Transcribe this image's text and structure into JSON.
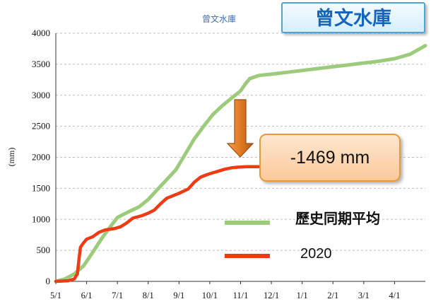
{
  "colors": {
    "historical": "#9ccc7b",
    "year2020": "#ee3b14",
    "arrow": "#e07a25",
    "badge_text": "#1565c0"
  },
  "badge": {
    "title": "曾文水庫"
  },
  "callout": {
    "text": "-1469 mm"
  },
  "chart_data": {
    "type": "line",
    "title": "曾文水庫",
    "ylabel": "(mm)",
    "xlabel": "",
    "ylim": [
      0,
      4000
    ],
    "y_ticks": [
      0,
      500,
      1000,
      1500,
      2000,
      2500,
      3000,
      3500,
      4000
    ],
    "x_ticks": [
      "5/1",
      "6/1",
      "7/1",
      "8/1",
      "9/1",
      "10/1",
      "11/1",
      "12/1",
      "1/1",
      "2/1",
      "3/1",
      "4/1"
    ],
    "x_unit": "months since 5/1",
    "grid": true,
    "legend_position": "bottom-right",
    "series": [
      {
        "name": "歷史同期平均",
        "color": "#9ccc7b",
        "points": [
          [
            0,
            0
          ],
          [
            0.3,
            40
          ],
          [
            0.6,
            120
          ],
          [
            0.9,
            250
          ],
          [
            1.2,
            470
          ],
          [
            1.5,
            700
          ],
          [
            1.8,
            900
          ],
          [
            2.0,
            1030
          ],
          [
            2.4,
            1130
          ],
          [
            2.7,
            1200
          ],
          [
            3.0,
            1320
          ],
          [
            3.3,
            1480
          ],
          [
            3.6,
            1640
          ],
          [
            3.9,
            1800
          ],
          [
            4.2,
            2050
          ],
          [
            4.5,
            2300
          ],
          [
            4.8,
            2500
          ],
          [
            5.1,
            2690
          ],
          [
            5.4,
            2830
          ],
          [
            5.7,
            2950
          ],
          [
            6.0,
            3070
          ],
          [
            6.15,
            3180
          ],
          [
            6.3,
            3270
          ],
          [
            6.6,
            3320
          ],
          [
            7.0,
            3340
          ],
          [
            7.5,
            3370
          ],
          [
            8.0,
            3400
          ],
          [
            8.5,
            3430
          ],
          [
            9.0,
            3460
          ],
          [
            9.5,
            3490
          ],
          [
            10.0,
            3520
          ],
          [
            10.5,
            3550
          ],
          [
            11.0,
            3590
          ],
          [
            11.5,
            3660
          ],
          [
            12.0,
            3800
          ]
        ]
      },
      {
        "name": "2020",
        "color": "#ee3b14",
        "points": [
          [
            0,
            0
          ],
          [
            0.4,
            10
          ],
          [
            0.6,
            40
          ],
          [
            0.7,
            120
          ],
          [
            0.75,
            350
          ],
          [
            0.8,
            550
          ],
          [
            0.9,
            620
          ],
          [
            1.0,
            680
          ],
          [
            1.2,
            720
          ],
          [
            1.4,
            790
          ],
          [
            1.6,
            830
          ],
          [
            1.9,
            850
          ],
          [
            2.1,
            880
          ],
          [
            2.3,
            940
          ],
          [
            2.5,
            1020
          ],
          [
            2.8,
            1060
          ],
          [
            3.0,
            1100
          ],
          [
            3.2,
            1150
          ],
          [
            3.4,
            1250
          ],
          [
            3.6,
            1340
          ],
          [
            3.8,
            1380
          ],
          [
            4.0,
            1420
          ],
          [
            4.3,
            1490
          ],
          [
            4.5,
            1600
          ],
          [
            4.7,
            1680
          ],
          [
            4.9,
            1720
          ],
          [
            5.1,
            1750
          ],
          [
            5.3,
            1780
          ],
          [
            5.5,
            1810
          ],
          [
            5.7,
            1830
          ],
          [
            5.9,
            1840
          ],
          [
            6.2,
            1850
          ],
          [
            6.6,
            1850
          ]
        ]
      }
    ]
  }
}
